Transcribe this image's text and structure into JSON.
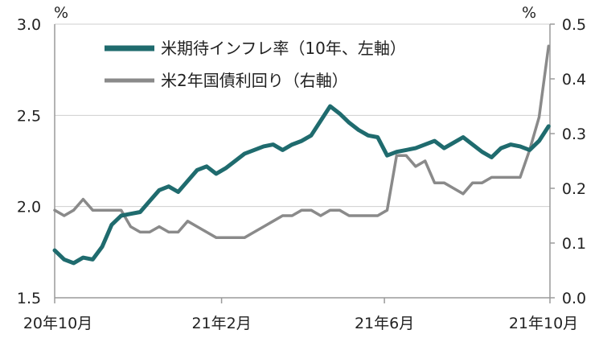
{
  "chart_data": {
    "type": "line",
    "x_tick_labels": [
      "20年10月",
      "21年2月",
      "21年6月",
      "21年10月"
    ],
    "left_axis": {
      "unit": "%",
      "ylim": [
        1.5,
        3.0
      ],
      "ticks": [
        "1.5",
        "2.0",
        "2.5",
        "3.0"
      ]
    },
    "right_axis": {
      "unit": "%",
      "ylim": [
        0.0,
        0.5
      ],
      "ticks": [
        "0.0",
        "0.1",
        "0.2",
        "0.3",
        "0.4",
        "0.5"
      ]
    },
    "grid": "horizontal",
    "legend_position": "top-center",
    "series": [
      {
        "name": "米期待インフレ率（10年、左軸）",
        "axis": "left",
        "color": "#1f6b6e",
        "x": [
          "2020-10-01",
          "2020-10-08",
          "2020-10-15",
          "2020-10-22",
          "2020-10-29",
          "2020-11-05",
          "2020-11-12",
          "2020-11-19",
          "2020-11-26",
          "2020-12-03",
          "2020-12-10",
          "2020-12-17",
          "2020-12-24",
          "2020-12-31",
          "2021-01-07",
          "2021-01-14",
          "2021-01-21",
          "2021-01-28",
          "2021-02-04",
          "2021-02-11",
          "2021-02-18",
          "2021-02-25",
          "2021-03-04",
          "2021-03-11",
          "2021-03-18",
          "2021-03-25",
          "2021-04-01",
          "2021-04-08",
          "2021-04-15",
          "2021-04-22",
          "2021-04-29",
          "2021-05-06",
          "2021-05-13",
          "2021-05-20",
          "2021-05-27",
          "2021-06-03",
          "2021-06-10",
          "2021-06-17",
          "2021-06-24",
          "2021-07-01",
          "2021-07-08",
          "2021-07-15",
          "2021-07-22",
          "2021-07-29",
          "2021-08-05",
          "2021-08-12",
          "2021-08-19",
          "2021-08-26",
          "2021-09-02",
          "2021-09-09",
          "2021-09-16",
          "2021-09-23",
          "2021-09-30"
        ],
        "values": [
          1.76,
          1.71,
          1.69,
          1.72,
          1.71,
          1.78,
          1.9,
          1.95,
          1.96,
          1.97,
          2.03,
          2.09,
          2.11,
          2.08,
          2.14,
          2.2,
          2.22,
          2.18,
          2.21,
          2.25,
          2.29,
          2.31,
          2.33,
          2.34,
          2.31,
          2.34,
          2.36,
          2.39,
          2.47,
          2.55,
          2.51,
          2.46,
          2.42,
          2.39,
          2.38,
          2.28,
          2.3,
          2.31,
          2.32,
          2.34,
          2.36,
          2.32,
          2.35,
          2.38,
          2.34,
          2.3,
          2.27,
          2.32,
          2.34,
          2.33,
          2.31,
          2.36,
          2.44
        ]
      },
      {
        "name": "米2年国債利回り（右軸）",
        "axis": "right",
        "color": "#8a8a8a",
        "x": [
          "2020-10-01",
          "2020-10-08",
          "2020-10-15",
          "2020-10-22",
          "2020-10-29",
          "2020-11-05",
          "2020-11-12",
          "2020-11-19",
          "2020-11-26",
          "2020-12-03",
          "2020-12-10",
          "2020-12-17",
          "2020-12-24",
          "2020-12-31",
          "2021-01-07",
          "2021-01-14",
          "2021-01-21",
          "2021-01-28",
          "2021-02-04",
          "2021-02-11",
          "2021-02-18",
          "2021-02-25",
          "2021-03-04",
          "2021-03-11",
          "2021-03-18",
          "2021-03-25",
          "2021-04-01",
          "2021-04-08",
          "2021-04-15",
          "2021-04-22",
          "2021-04-29",
          "2021-05-06",
          "2021-05-13",
          "2021-05-20",
          "2021-05-27",
          "2021-06-03",
          "2021-06-10",
          "2021-06-17",
          "2021-06-24",
          "2021-07-01",
          "2021-07-08",
          "2021-07-15",
          "2021-07-22",
          "2021-07-29",
          "2021-08-05",
          "2021-08-12",
          "2021-08-19",
          "2021-08-26",
          "2021-09-02",
          "2021-09-09",
          "2021-09-16",
          "2021-09-23",
          "2021-09-30"
        ],
        "values": [
          0.16,
          0.15,
          0.16,
          0.18,
          0.16,
          0.16,
          0.16,
          0.16,
          0.13,
          0.12,
          0.12,
          0.13,
          0.12,
          0.12,
          0.14,
          0.13,
          0.12,
          0.11,
          0.11,
          0.11,
          0.11,
          0.12,
          0.13,
          0.14,
          0.15,
          0.15,
          0.16,
          0.16,
          0.15,
          0.16,
          0.16,
          0.15,
          0.15,
          0.15,
          0.15,
          0.16,
          0.26,
          0.26,
          0.24,
          0.25,
          0.21,
          0.21,
          0.2,
          0.19,
          0.21,
          0.21,
          0.22,
          0.22,
          0.22,
          0.22,
          0.27,
          0.33,
          0.46
        ]
      }
    ]
  }
}
